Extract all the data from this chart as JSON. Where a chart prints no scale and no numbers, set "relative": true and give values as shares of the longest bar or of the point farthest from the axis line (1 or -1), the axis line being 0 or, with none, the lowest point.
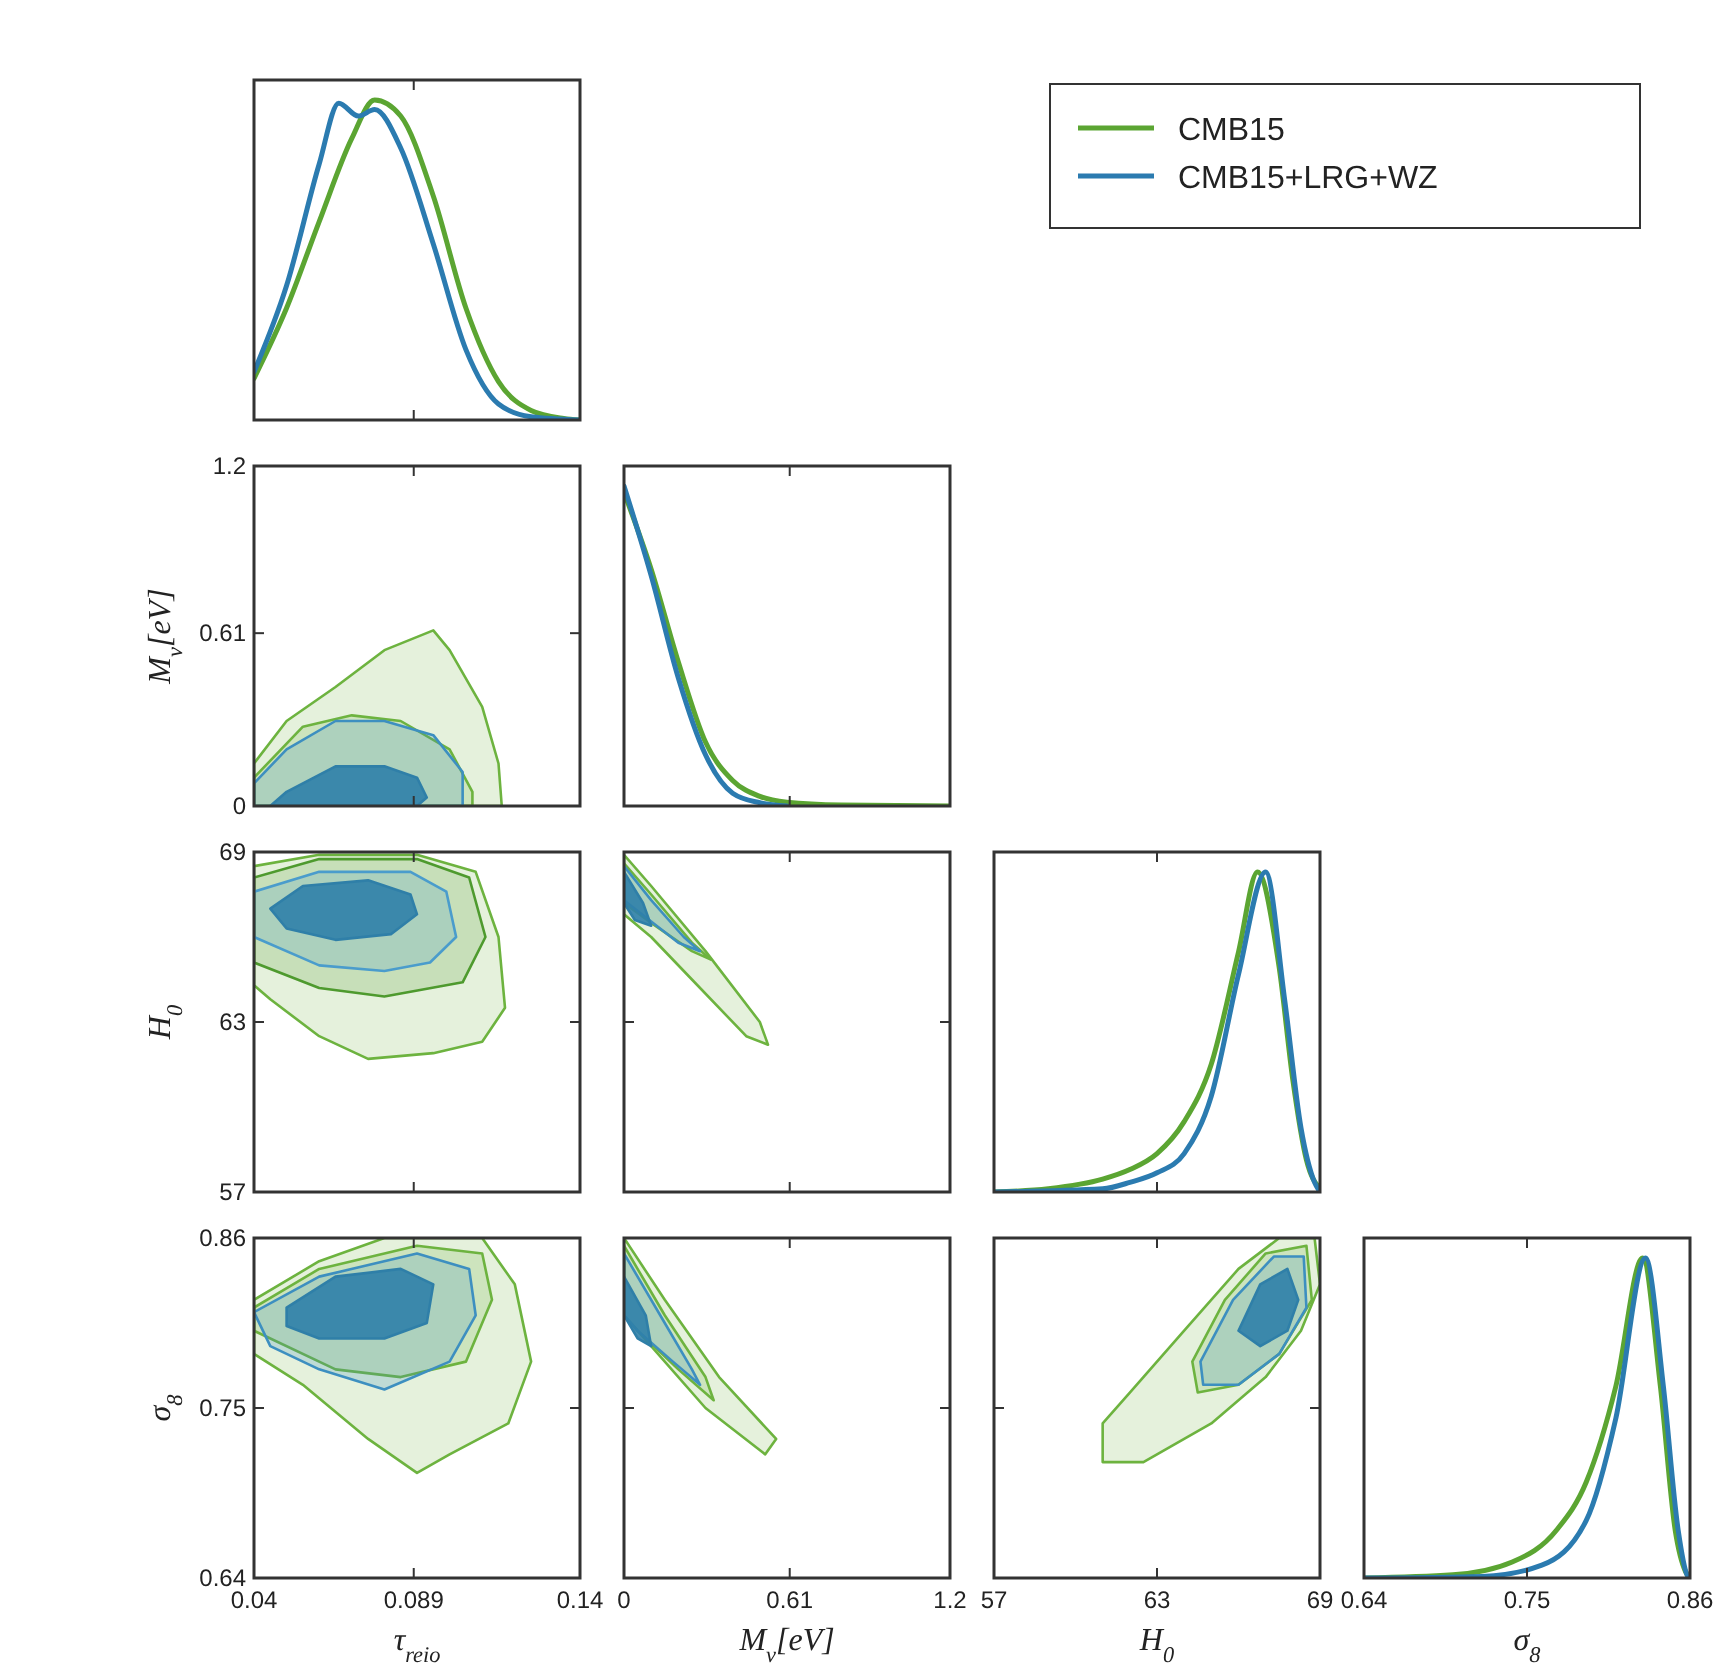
{
  "chart_data": [
    {
      "type": "line",
      "relative": true,
      "xlim": [
        0.04,
        0.14
      ],
      "xticks": [
        0.04,
        0.089,
        0.14
      ],
      "tick_labels": false,
      "legend": "right",
      "series": [
        {
          "name": "CMB15",
          "color": "#5ba532",
          "x": [
            0.04,
            0.05,
            0.06,
            0.07,
            0.077,
            0.085,
            0.095,
            0.105,
            0.115,
            0.125,
            0.135,
            0.14
          ],
          "values": [
            0.13,
            0.35,
            0.62,
            0.88,
            1.0,
            0.95,
            0.7,
            0.35,
            0.12,
            0.03,
            0.005,
            0
          ]
        },
        {
          "name": "CMB15+LRG+WZ",
          "color": "#2b7bb0",
          "x": [
            0.04,
            0.05,
            0.06,
            0.066,
            0.072,
            0.077,
            0.085,
            0.095,
            0.105,
            0.115,
            0.125,
            0.14
          ],
          "values": [
            0.15,
            0.42,
            0.8,
            0.99,
            0.95,
            0.97,
            0.85,
            0.55,
            0.22,
            0.05,
            0.01,
            0
          ]
        }
      ]
    },
    {
      "type": "area",
      "xlim": [
        0.04,
        0.14
      ],
      "xticks": [
        0.04,
        0.089,
        0.14
      ],
      "ylim": [
        0,
        1.2
      ],
      "yticks": [
        0,
        0.61,
        1.2
      ],
      "ylabel": "M$_{ν}$[eV]",
      "tick_labels": "y",
      "series": [
        {
          "color": "#6db33f",
          "x": [
            0.04,
            0.05,
            0.065,
            0.08,
            0.095,
            0.1,
            0.11,
            0.115,
            0.116,
            0.04
          ],
          "values": [
            0.15,
            0.3,
            0.42,
            0.55,
            0.62,
            0.55,
            0.35,
            0.15,
            0,
            0
          ]
        },
        {
          "color": "#6db33f",
          "x": [
            0.04,
            0.055,
            0.07,
            0.085,
            0.1,
            0.107,
            0.107,
            0.04
          ],
          "values": [
            0.1,
            0.28,
            0.32,
            0.3,
            0.2,
            0.05,
            0,
            0
          ]
        },
        {
          "color": "#3d8fc0",
          "x": [
            0.04,
            0.05,
            0.065,
            0.08,
            0.095,
            0.104,
            0.104,
            0.04
          ],
          "values": [
            0.08,
            0.2,
            0.3,
            0.3,
            0.25,
            0.12,
            0,
            0
          ]
        },
        {
          "color": "#2f7fa8",
          "x": [
            0.045,
            0.05,
            0.065,
            0.08,
            0.09,
            0.093,
            0.09
          ],
          "values": [
            0,
            0.05,
            0.14,
            0.14,
            0.1,
            0.03,
            0
          ]
        }
      ]
    },
    {
      "type": "line",
      "relative": true,
      "xlim": [
        0,
        1.2
      ],
      "xticks": [
        0,
        0.61,
        1.2
      ],
      "tick_labels": false,
      "series": [
        {
          "color": "#5ba532",
          "x": [
            0,
            0.1,
            0.2,
            0.3,
            0.4,
            0.5,
            0.6,
            0.8,
            1.2
          ],
          "values": [
            0.98,
            0.74,
            0.45,
            0.2,
            0.08,
            0.03,
            0.012,
            0.003,
            0
          ]
        },
        {
          "color": "#2b7bb0",
          "x": [
            0,
            0.1,
            0.2,
            0.3,
            0.4,
            0.5,
            0.6
          ],
          "values": [
            1.0,
            0.72,
            0.4,
            0.16,
            0.04,
            0.01,
            0
          ]
        }
      ]
    },
    {
      "type": "area",
      "xlim": [
        0.04,
        0.14
      ],
      "xticks": [
        0.04,
        0.089,
        0.14
      ],
      "ylim": [
        57,
        69
      ],
      "yticks": [
        57,
        63,
        69
      ],
      "ylabel": "H$_{0}$",
      "tick_labels": "y",
      "series": [
        {
          "color": "#6db33f",
          "x": [
            0.04,
            0.06,
            0.09,
            0.108,
            0.115,
            0.117,
            0.11,
            0.095,
            0.075,
            0.06,
            0.045,
            0.04
          ],
          "values": [
            68.5,
            68.9,
            68.9,
            68.3,
            66,
            63.5,
            62.3,
            61.9,
            61.7,
            62.5,
            63.8,
            64.3
          ]
        },
        {
          "color": "#4e9a2e",
          "x": [
            0.04,
            0.06,
            0.09,
            0.106,
            0.111,
            0.104,
            0.08,
            0.06,
            0.04
          ],
          "values": [
            68.1,
            68.75,
            68.75,
            68.1,
            66,
            64.4,
            63.9,
            64.2,
            65.1
          ]
        },
        {
          "color": "#4a9ccc",
          "x": [
            0.04,
            0.06,
            0.088,
            0.099,
            0.102,
            0.094,
            0.08,
            0.06,
            0.04
          ],
          "values": [
            67.6,
            68.3,
            68.3,
            67.6,
            66,
            65.1,
            64.8,
            65,
            66
          ]
        },
        {
          "color": "#2f7fa8",
          "x": [
            0.045,
            0.055,
            0.075,
            0.088,
            0.09,
            0.082,
            0.065,
            0.05
          ],
          "values": [
            67,
            67.8,
            68,
            67.5,
            66.8,
            66.1,
            65.9,
            66.3
          ]
        }
      ]
    },
    {
      "type": "area",
      "xlim": [
        0,
        1.2
      ],
      "xticks": [
        0,
        0.61,
        1.2
      ],
      "ylim": [
        57,
        69
      ],
      "yticks": [
        57,
        63,
        69
      ],
      "tick_labels": false,
      "series": [
        {
          "color": "#6db33f",
          "x": [
            0,
            0.1,
            0.3,
            0.5,
            0.53,
            0.45,
            0.25,
            0.1,
            0
          ],
          "values": [
            68.9,
            67.8,
            65.5,
            63,
            62.2,
            62.5,
            64.5,
            66,
            66.8
          ]
        },
        {
          "color": "#6db33f",
          "x": [
            0,
            0.1,
            0.25,
            0.32,
            0.25,
            0.1,
            0
          ],
          "values": [
            68.6,
            67.5,
            65.8,
            65.2,
            65.5,
            66.5,
            67.2
          ]
        },
        {
          "color": "#3d8fc0",
          "x": [
            0,
            0.1,
            0.22,
            0.28,
            0.2,
            0.08,
            0
          ],
          "values": [
            68.5,
            67.3,
            66,
            65.5,
            65.8,
            66.7,
            67.3
          ]
        },
        {
          "color": "#2f7fa8",
          "x": [
            0,
            0.07,
            0.1,
            0.04,
            0
          ],
          "values": [
            68.3,
            67.2,
            66.4,
            66.6,
            67.2
          ]
        }
      ]
    },
    {
      "type": "line",
      "relative": true,
      "xlim": [
        57,
        69
      ],
      "xticks": [
        57,
        63,
        69
      ],
      "tick_labels": false,
      "series": [
        {
          "color": "#5ba532",
          "x": [
            57,
            59,
            61,
            62,
            63,
            64,
            65,
            66,
            66.7,
            67.5,
            68,
            68.5,
            69
          ],
          "values": [
            0,
            0.01,
            0.04,
            0.07,
            0.12,
            0.22,
            0.4,
            0.75,
            1.0,
            0.7,
            0.35,
            0.1,
            0.01
          ]
        },
        {
          "color": "#2b7bb0",
          "x": [
            57,
            61,
            62,
            63,
            64,
            65,
            66,
            67,
            67.7,
            68.3,
            68.8,
            69
          ],
          "values": [
            0,
            0.01,
            0.03,
            0.06,
            0.12,
            0.3,
            0.68,
            1.0,
            0.6,
            0.2,
            0.03,
            0
          ]
        }
      ]
    },
    {
      "type": "area",
      "xlim": [
        0.04,
        0.14
      ],
      "xticks": [
        0.04,
        0.089,
        0.14
      ],
      "ylim": [
        0.64,
        0.86
      ],
      "yticks": [
        0.64,
        0.75,
        0.86
      ],
      "xlabel": "τ$_{reio}$",
      "ylabel": "σ$_{8}$",
      "series": [
        {
          "color": "#6db33f",
          "x": [
            0.04,
            0.06,
            0.08,
            0.11,
            0.12,
            0.125,
            0.118,
            0.1,
            0.09,
            0.075,
            0.055,
            0.04
          ],
          "values": [
            0.82,
            0.845,
            0.86,
            0.86,
            0.83,
            0.78,
            0.74,
            0.72,
            0.708,
            0.73,
            0.765,
            0.785
          ]
        },
        {
          "color": "#6db33f",
          "x": [
            0.04,
            0.06,
            0.09,
            0.11,
            0.113,
            0.105,
            0.085,
            0.065,
            0.04
          ],
          "values": [
            0.815,
            0.84,
            0.855,
            0.85,
            0.82,
            0.78,
            0.77,
            0.775,
            0.8
          ]
        },
        {
          "color": "#3d8fc0",
          "x": [
            0.04,
            0.06,
            0.09,
            0.106,
            0.108,
            0.1,
            0.08,
            0.06,
            0.045
          ],
          "values": [
            0.812,
            0.835,
            0.85,
            0.84,
            0.81,
            0.78,
            0.762,
            0.775,
            0.79
          ]
        },
        {
          "color": "#2f7fa8",
          "x": [
            0.05,
            0.065,
            0.085,
            0.095,
            0.093,
            0.08,
            0.06,
            0.05
          ],
          "values": [
            0.815,
            0.835,
            0.84,
            0.83,
            0.805,
            0.795,
            0.795,
            0.803
          ]
        }
      ]
    },
    {
      "type": "area",
      "xlim": [
        0,
        1.2
      ],
      "xticks": [
        0,
        0.61,
        1.2
      ],
      "ylim": [
        0.64,
        0.86
      ],
      "yticks": [
        0.64,
        0.75,
        0.86
      ],
      "xlabel": "M$_{ν}$[eV]",
      "tick_labels": "x",
      "series": [
        {
          "color": "#6db33f",
          "x": [
            0,
            0.15,
            0.35,
            0.56,
            0.52,
            0.3,
            0.1,
            0
          ],
          "values": [
            0.86,
            0.82,
            0.77,
            0.73,
            0.72,
            0.75,
            0.79,
            0.81
          ]
        },
        {
          "color": "#6db33f",
          "x": [
            0,
            0.15,
            0.3,
            0.33,
            0.2,
            0.05,
            0
          ],
          "values": [
            0.855,
            0.81,
            0.77,
            0.755,
            0.775,
            0.8,
            0.81
          ]
        },
        {
          "color": "#3d8fc0",
          "x": [
            0,
            0.15,
            0.25,
            0.28,
            0.18,
            0.05,
            0
          ],
          "values": [
            0.85,
            0.805,
            0.775,
            0.765,
            0.78,
            0.8,
            0.81
          ]
        },
        {
          "color": "#2f7fa8",
          "x": [
            0,
            0.08,
            0.1,
            0.05,
            0
          ],
          "values": [
            0.835,
            0.81,
            0.79,
            0.795,
            0.81
          ]
        }
      ]
    },
    {
      "type": "area",
      "xlim": [
        57,
        69
      ],
      "xticks": [
        57,
        63,
        69
      ],
      "ylim": [
        0.64,
        0.86
      ],
      "yticks": [
        0.64,
        0.75,
        0.86
      ],
      "xlabel": "H$_{0}$",
      "tick_labels": "x",
      "series": [
        {
          "color": "#6db33f",
          "x": [
            61,
            62,
            64,
            66,
            67.5,
            68.8,
            69,
            68.3,
            67,
            65,
            62.5,
            61
          ],
          "values": [
            0.74,
            0.76,
            0.8,
            0.84,
            0.86,
            0.86,
            0.83,
            0.8,
            0.77,
            0.74,
            0.715,
            0.715
          ]
        },
        {
          "color": "#6db33f",
          "x": [
            64.3,
            65.5,
            67,
            68.5,
            68.7,
            67.5,
            66,
            64.5
          ],
          "values": [
            0.78,
            0.82,
            0.85,
            0.855,
            0.82,
            0.785,
            0.765,
            0.76
          ]
        },
        {
          "color": "#3d8fc0",
          "x": [
            64.6,
            65.8,
            67.3,
            68.4,
            68.5,
            67.5,
            66,
            64.7
          ],
          "values": [
            0.78,
            0.82,
            0.848,
            0.848,
            0.815,
            0.785,
            0.765,
            0.765
          ]
        },
        {
          "color": "#2f7fa8",
          "x": [
            66,
            66.8,
            67.8,
            68.2,
            67.8,
            66.8
          ],
          "values": [
            0.8,
            0.83,
            0.84,
            0.82,
            0.8,
            0.79
          ]
        }
      ]
    },
    {
      "type": "line",
      "relative": true,
      "xlim": [
        0.64,
        0.86
      ],
      "xticks": [
        0.64,
        0.75,
        0.86
      ],
      "xlabel": "σ$_{8}$",
      "tick_labels": "x",
      "series": [
        {
          "color": "#5ba532",
          "x": [
            0.64,
            0.7,
            0.74,
            0.77,
            0.79,
            0.81,
            0.828,
            0.84,
            0.85,
            0.857,
            0.86
          ],
          "values": [
            0,
            0.01,
            0.05,
            0.15,
            0.3,
            0.6,
            1.0,
            0.6,
            0.15,
            0.02,
            0
          ]
        },
        {
          "color": "#2b7bb0",
          "x": [
            0.64,
            0.72,
            0.76,
            0.79,
            0.81,
            0.83,
            0.842,
            0.852,
            0.858,
            0.86
          ],
          "values": [
            0,
            0.005,
            0.04,
            0.18,
            0.5,
            1.0,
            0.6,
            0.15,
            0.01,
            0
          ]
        }
      ]
    }
  ]
}
